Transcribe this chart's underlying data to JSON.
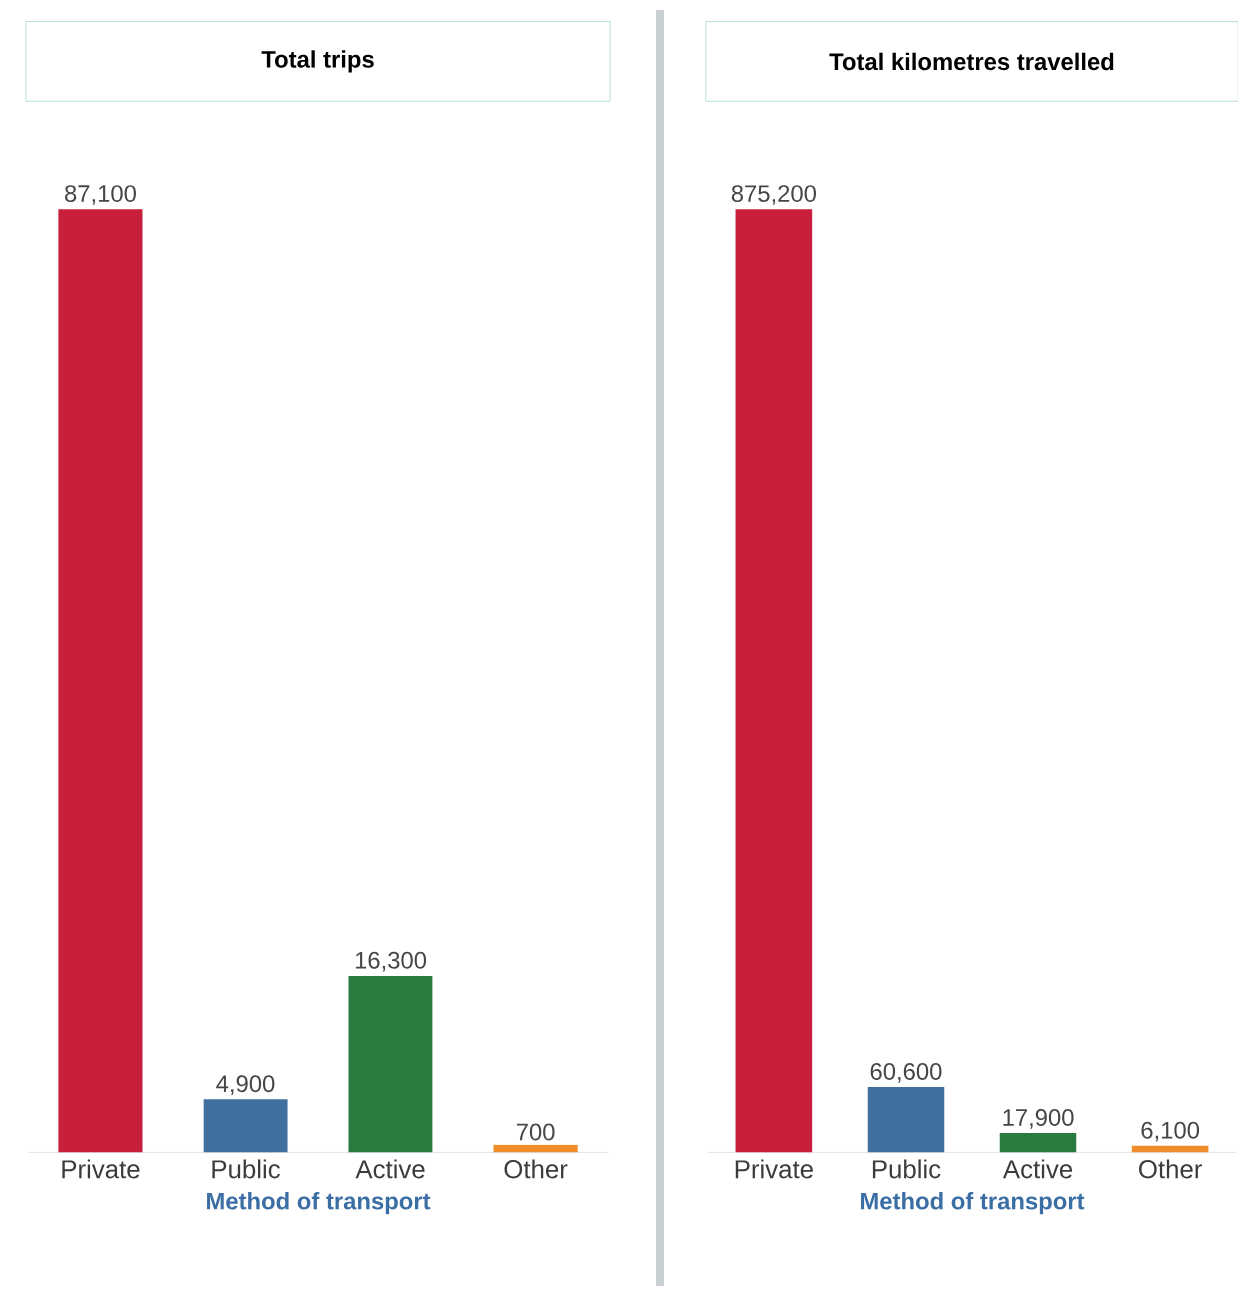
{
  "chart_data": [
    {
      "type": "bar",
      "title": "Total trips",
      "xlabel": "Method of transport",
      "categories": [
        "Private",
        "Public",
        "Active",
        "Other"
      ],
      "values": [
        87100,
        4900,
        16300,
        700
      ],
      "value_labels": [
        "87,100",
        "4,900",
        "16,300",
        "700"
      ],
      "colors": [
        "#c8203c",
        "#41709f",
        "#2a7b3f",
        "#f08c2a"
      ]
    },
    {
      "type": "bar",
      "title": "Total kilometres travelled",
      "xlabel": "Method of transport",
      "categories": [
        "Private",
        "Public",
        "Active",
        "Other"
      ],
      "values": [
        875200,
        60600,
        17900,
        6100
      ],
      "value_labels": [
        "875,200",
        "60,600",
        "17,900",
        "6,100"
      ],
      "colors": [
        "#c8203c",
        "#41709f",
        "#2a7b3f",
        "#f08c2a"
      ]
    }
  ]
}
